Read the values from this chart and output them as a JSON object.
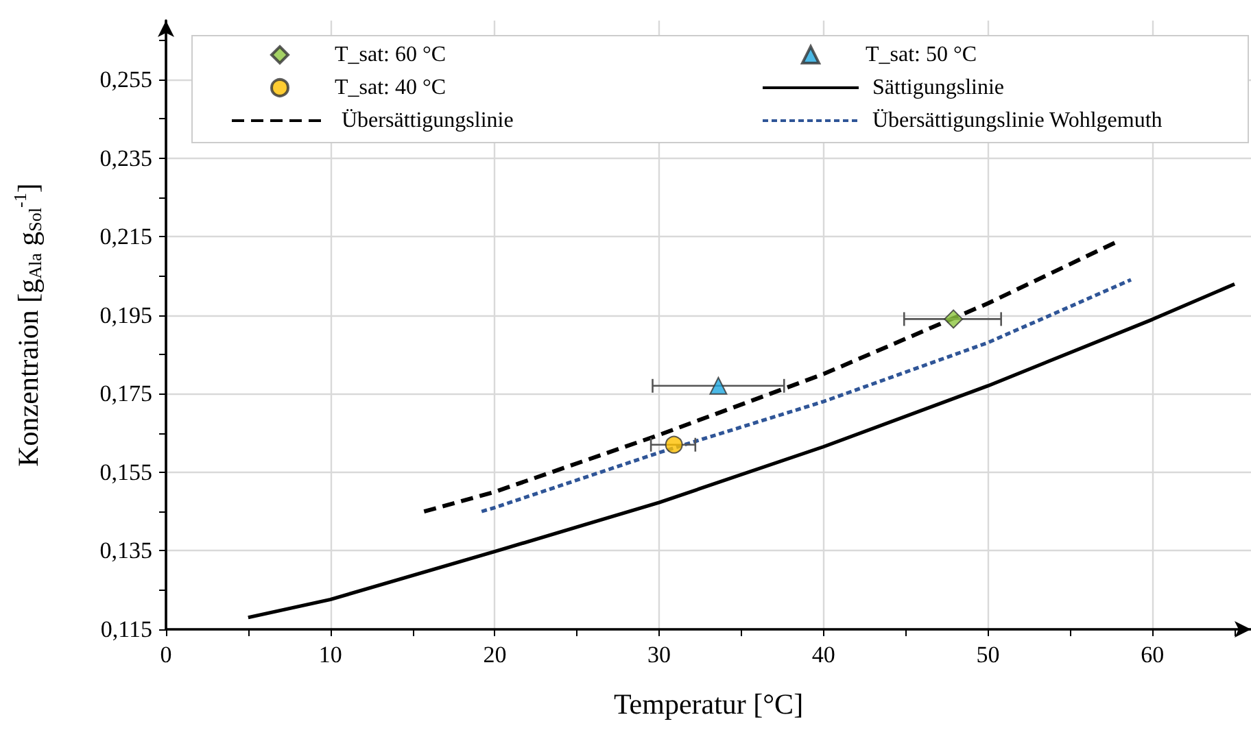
{
  "chart_data": {
    "type": "line",
    "xlabel": "Temperatur [°C]",
    "ylabel": "Konzentraion [g$_{Ala}$ g$_{Sol}$$^{-1}$]",
    "xlim": [
      0,
      66
    ],
    "xticks": [
      0,
      {
        "value": 5,
        "label": null
      },
      10,
      {
        "value": 15,
        "label": null
      },
      20,
      {
        "value": 25,
        "label": null
      },
      30,
      {
        "value": 35,
        "label": null
      },
      40,
      {
        "value": 45,
        "label": null
      },
      50,
      {
        "value": 55,
        "label": null
      },
      60,
      {
        "value": 65,
        "label": null
      }
    ],
    "ylim": [
      0.115,
      0.27
    ],
    "yticks": [
      {
        "value": 0.115,
        "label": "0,115"
      },
      {
        "value": 0.125,
        "label": null
      },
      {
        "value": 0.135,
        "label": "0,135"
      },
      {
        "value": 0.145,
        "label": null
      },
      {
        "value": 0.155,
        "label": "0,155"
      },
      {
        "value": 0.165,
        "label": null
      },
      {
        "value": 0.175,
        "label": "0,175"
      },
      {
        "value": 0.185,
        "label": null
      },
      {
        "value": 0.195,
        "label": "0,195"
      },
      {
        "value": 0.205,
        "label": null
      },
      {
        "value": 0.215,
        "label": "0,215"
      },
      {
        "value": 0.225,
        "label": null
      },
      {
        "value": 0.235,
        "label": "0,235"
      },
      {
        "value": 0.245,
        "label": null
      },
      {
        "value": 0.255,
        "label": "0,255"
      },
      {
        "value": 0.265,
        "label": null
      }
    ],
    "grid": true,
    "legend": "top",
    "series": [
      {
        "name": "T_sat: 60 °C",
        "type": "scatter",
        "marker": "diamond",
        "color": "#8dc63f",
        "x": [
          47.9
        ],
        "values": [
          0.194
        ],
        "xerrors": [
          [
            44.9,
            50.8
          ]
        ]
      },
      {
        "name": "T_sat: 50 °C",
        "type": "scatter",
        "marker": "triangle",
        "color": "#1fa8e0",
        "x": [
          33.6
        ],
        "values": [
          0.177
        ],
        "xerrors": [
          [
            29.6,
            37.6
          ]
        ]
      },
      {
        "name": "T_sat: 40 °C",
        "type": "scatter",
        "marker": "circle",
        "color": "#ffc000",
        "x": [
          30.9
        ],
        "values": [
          0.162
        ],
        "xerrors": [
          [
            29.5,
            32.2
          ]
        ]
      },
      {
        "name": "Sättigungslinie",
        "line_style": "solid",
        "color": "#000000",
        "x": [
          5,
          10,
          20,
          30,
          40,
          50,
          60,
          65
        ],
        "values": [
          0.118,
          0.1226,
          0.1348,
          0.1473,
          0.1615,
          0.177,
          0.1939,
          0.2029
        ]
      },
      {
        "name": "Übersättigungslinie",
        "line_style": "dashed",
        "color": "#000000",
        "x": [
          15.7,
          20,
          30,
          40,
          50,
          58
        ],
        "values": [
          0.145,
          0.15,
          0.1645,
          0.18,
          0.198,
          0.214
        ]
      },
      {
        "name": "Übersättigungslinie Wohlgemuth",
        "line_style": "dotted",
        "color": "#2f5597",
        "x": [
          19.2,
          20,
          30,
          40,
          50,
          58.7
        ],
        "values": [
          0.145,
          0.146,
          0.16,
          0.173,
          0.188,
          0.204
        ]
      }
    ]
  }
}
